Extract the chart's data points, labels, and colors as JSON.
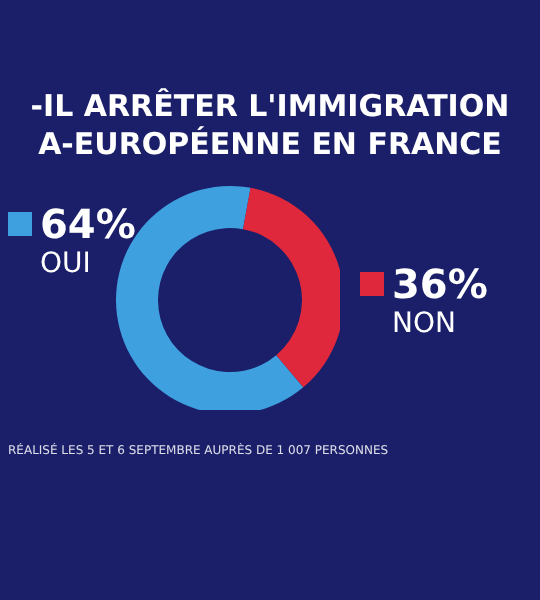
{
  "chart_data": {
    "type": "donut",
    "title": "-IL ARRÊTER L'IMMIGRATION\nA-EUROPÉENNE EN FRANCE",
    "categories": [
      "OUI",
      "NON"
    ],
    "values": [
      64,
      36
    ],
    "colors": [
      "#3fa0e0",
      "#e0283c"
    ],
    "value_labels": [
      "64%",
      "36%"
    ],
    "legend": "left",
    "annotations": [
      "RÉALISÉ LES 5 ET 6 SEPTEMBRE AUPRÈS DE 1 007 PERSONNES"
    ]
  }
}
